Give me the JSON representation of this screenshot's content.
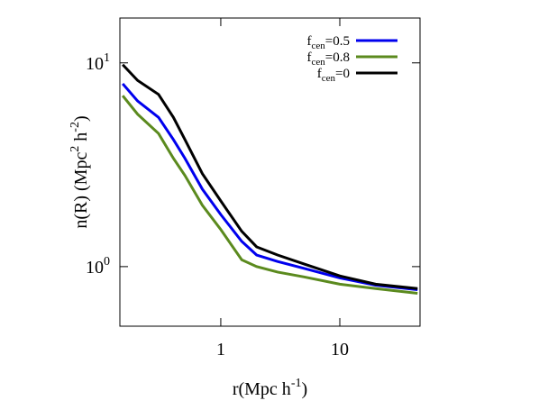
{
  "chart_data": {
    "type": "line",
    "xlabel": [
      "r(Mpc h",
      "-1",
      ")"
    ],
    "ylabel": [
      "n(R) (Mpc",
      "2",
      " h",
      "-2",
      ")"
    ],
    "xscale": "log",
    "yscale": "log",
    "xlim": [
      0.142,
      47.2
    ],
    "ylim": [
      0.51,
      16.6
    ],
    "xticks": [
      1,
      10
    ],
    "yticks": [
      {
        "value": 1,
        "label": [
          "10",
          "0"
        ]
      },
      {
        "value": 10,
        "label": [
          "10",
          "1"
        ]
      }
    ],
    "legend": "top-right",
    "x": [
      0.15,
      0.2,
      0.3,
      0.4,
      0.5,
      0.7,
      1,
      1.5,
      2,
      3,
      5,
      10,
      20,
      45
    ],
    "series": [
      {
        "name": [
          "f",
          "cen",
          "=0.5"
        ],
        "color": "#0000ee",
        "values": [
          7.9,
          6.5,
          5.4,
          4.2,
          3.4,
          2.4,
          1.8,
          1.33,
          1.14,
          1.06,
          0.98,
          0.88,
          0.81,
          0.77
        ]
      },
      {
        "name": [
          "f",
          "cen",
          "=0.8"
        ],
        "color": "#5b8a1e",
        "values": [
          6.9,
          5.6,
          4.5,
          3.4,
          2.8,
          2.0,
          1.52,
          1.08,
          1.0,
          0.94,
          0.89,
          0.82,
          0.78,
          0.74
        ]
      },
      {
        "name": [
          "f",
          "cen",
          "=0"
        ],
        "color": "#000000",
        "values": [
          9.8,
          8.2,
          7.0,
          5.4,
          4.2,
          2.86,
          2.1,
          1.49,
          1.25,
          1.14,
          1.03,
          0.9,
          0.82,
          0.78
        ]
      }
    ]
  }
}
